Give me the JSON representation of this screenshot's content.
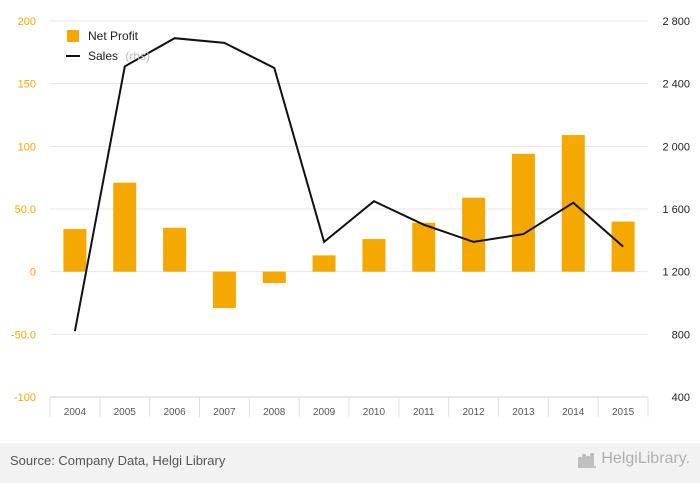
{
  "chart_data": {
    "type": "bar+line",
    "categories": [
      "2004",
      "2005",
      "2006",
      "2007",
      "2008",
      "2009",
      "2010",
      "2011",
      "2012",
      "2013",
      "2014",
      "2015"
    ],
    "series": [
      {
        "name": "Net Profit",
        "type": "bar",
        "axis": "left",
        "color": "#f5a800",
        "values": [
          34,
          71,
          35,
          -29,
          -9,
          13,
          26,
          39,
          59,
          94,
          109,
          40
        ]
      },
      {
        "name": "Sales",
        "name_suffix": "(rhs)",
        "type": "line",
        "axis": "right",
        "color": "#111111",
        "values": [
          820,
          2510,
          2690,
          2660,
          2500,
          1390,
          1650,
          1500,
          1390,
          1440,
          1640,
          1360
        ]
      }
    ],
    "y_left": {
      "min": -100,
      "max": 200,
      "ticks": [
        200,
        150,
        100,
        50,
        0,
        -50,
        -100
      ],
      "tick_labels": [
        "200",
        "150",
        "100",
        "50.0",
        "0",
        "-50.0",
        "-100"
      ]
    },
    "y_right": {
      "min": 400,
      "max": 2800,
      "ticks": [
        2800,
        2400,
        2000,
        1600,
        1200,
        800,
        400
      ],
      "tick_labels": [
        "2 800",
        "2 400",
        "2 000",
        "1 600",
        "1 200",
        "800",
        "400"
      ]
    },
    "legend_position": "top-left",
    "grid": true
  },
  "footer": {
    "source": "Source: Company Data, Helgi Library",
    "brand": "HelgiLibrary."
  }
}
